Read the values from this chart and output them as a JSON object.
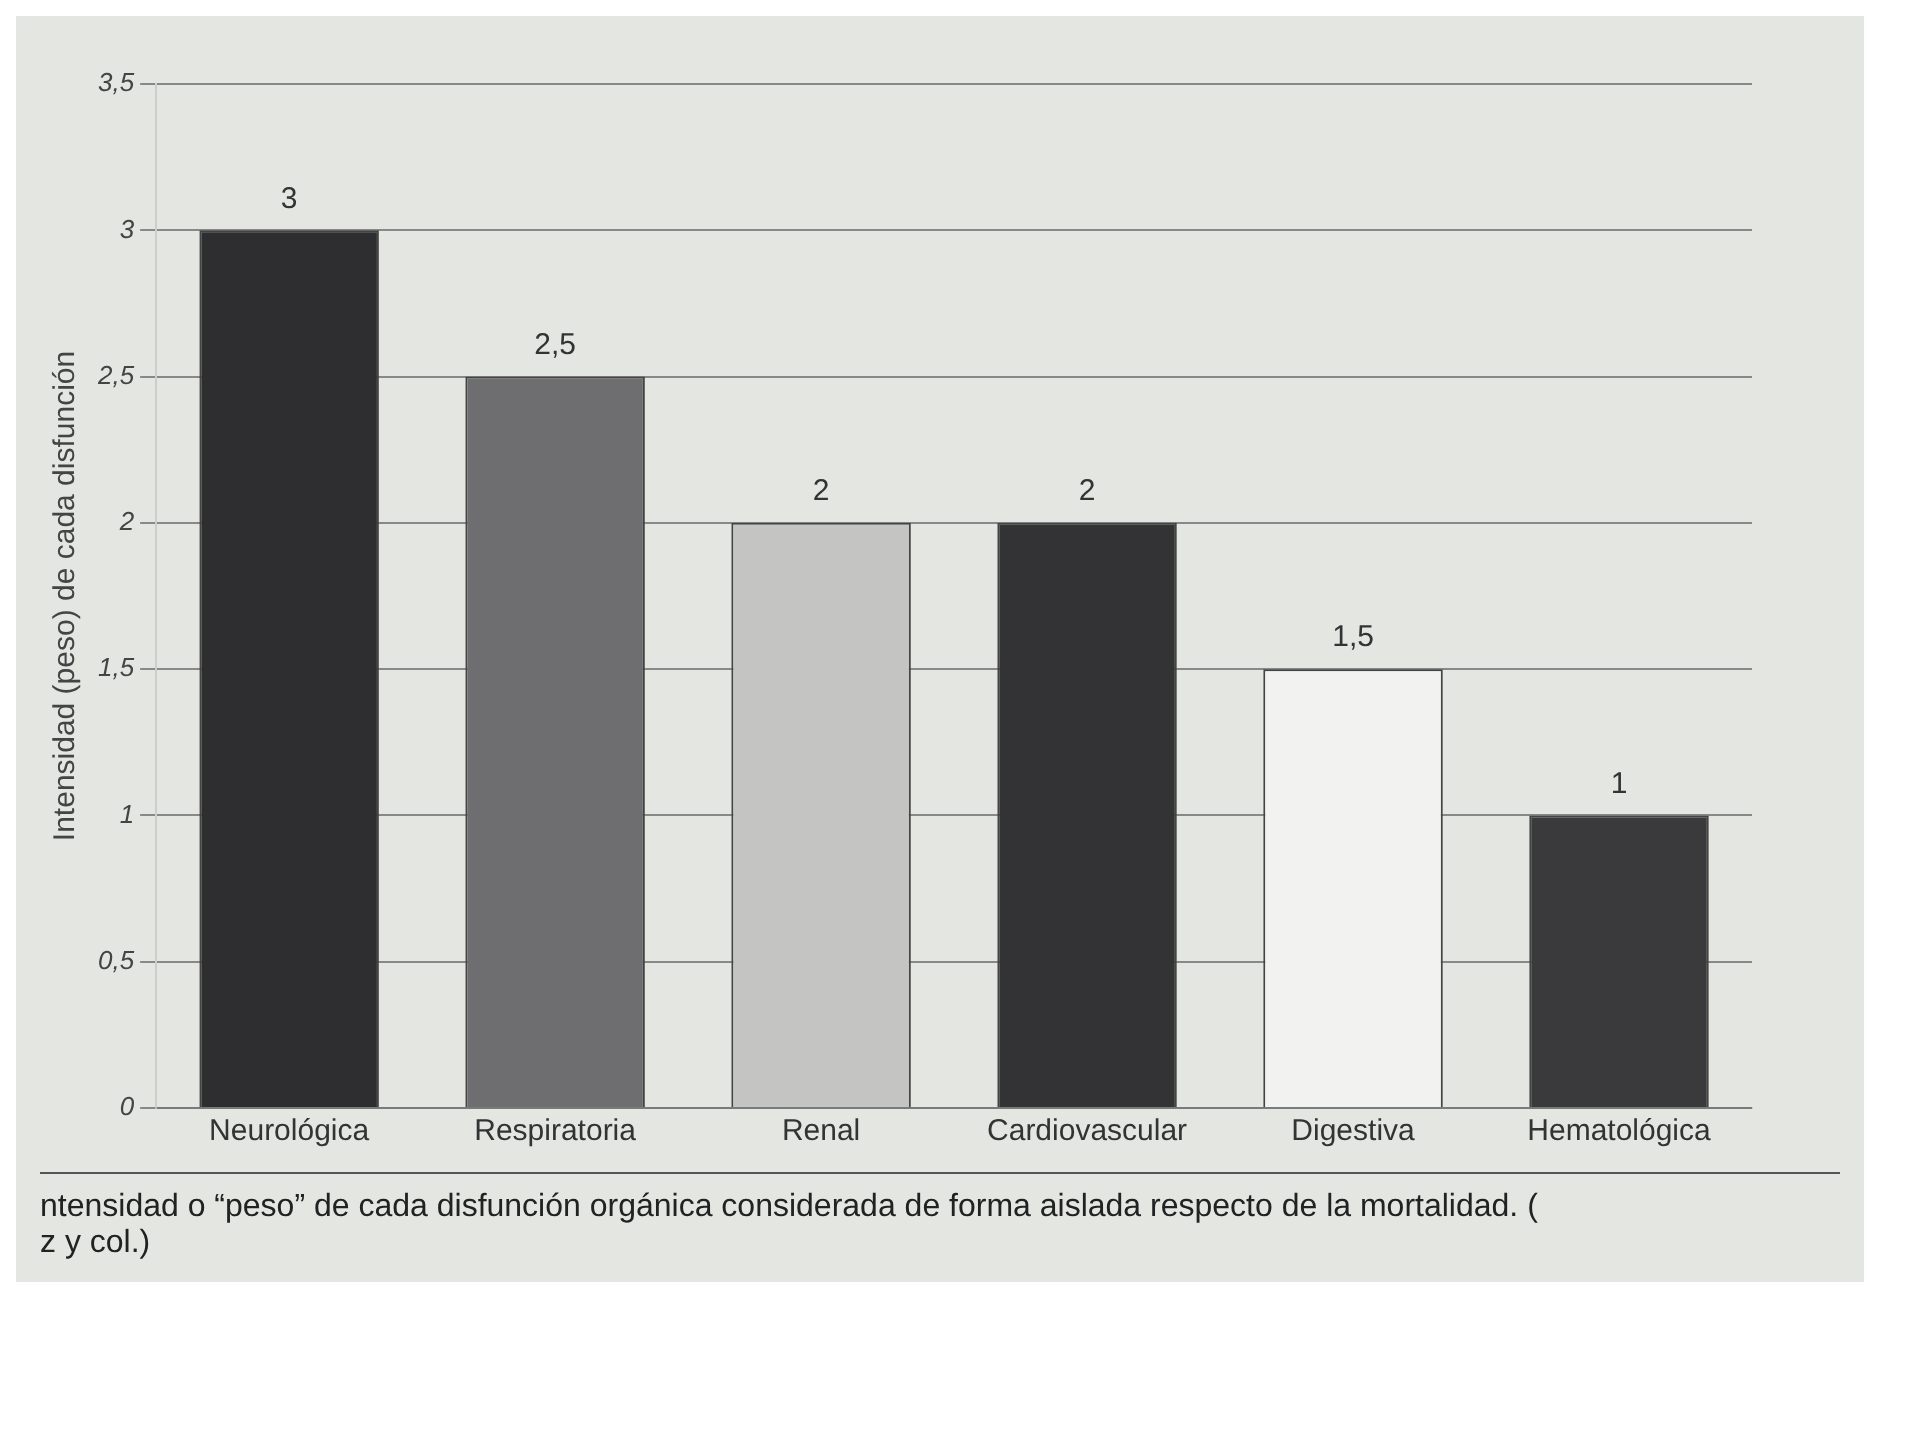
{
  "chart_data": {
    "type": "bar",
    "ylabel": "Intensidad (peso) de cada disfunción",
    "categories": [
      "Neurológica",
      "Respiratoria",
      "Renal",
      "Cardiovascular",
      "Digestiva",
      "Hematológica"
    ],
    "values": [
      3,
      2.5,
      2,
      2,
      1.5,
      1
    ],
    "value_labels": [
      "3",
      "2,5",
      "2",
      "2",
      "1,5",
      "1"
    ],
    "colors": [
      "#2e2e30",
      "#6e6e70",
      "#c4c4c2",
      "#333335",
      "#f2f2f0",
      "#3a3a3c"
    ],
    "ylim": [
      0,
      3.5
    ],
    "yticks": [
      0,
      {
        "value": 0.5,
        "label": "0,5"
      },
      1,
      {
        "value": 1.5,
        "label": "1,5"
      },
      2,
      {
        "value": 2.5,
        "label": "2,5"
      },
      3,
      {
        "value": 3.5,
        "label": "3,5"
      }
    ],
    "grid": "y",
    "annotations": [
      "ntensidad o “peso” de cada  disfunción orgánica considerada de forma aislada respecto de la mortalidad. (",
      "z y col.)"
    ]
  }
}
